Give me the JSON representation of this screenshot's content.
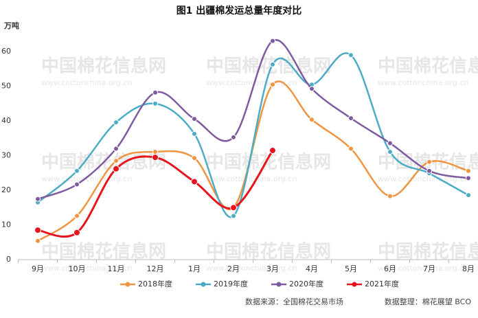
{
  "chart_data": {
    "type": "line",
    "title": "图1  出疆棉发运总量年度对比",
    "y_label": "万吨",
    "source": "数据来源：全国棉花交易市场",
    "credit": "数据整理：棉花展望  BCO",
    "watermark": "中国棉花信息网",
    "watermark_url": "www.cottonchina.org.cn",
    "categories": [
      "9月",
      "10月",
      "11月",
      "12月",
      "1月",
      "2月",
      "3月",
      "4月",
      "5月",
      "6月",
      "7月",
      "8月"
    ],
    "series": [
      {
        "name": "2018年度",
        "color": "#f0953f",
        "values": [
          5.4,
          12.6,
          28.5,
          31.1,
          29.3,
          15.0,
          50.5,
          40.4,
          32.0,
          18.3,
          28.2,
          25.6
        ]
      },
      {
        "name": "2019年度",
        "color": "#4bacc6",
        "values": [
          16.5,
          25.6,
          39.6,
          45.0,
          36.3,
          12.6,
          56.3,
          50.5,
          59.0,
          31.1,
          24.9,
          18.6
        ]
      },
      {
        "name": "2020年度",
        "color": "#7e5aa0",
        "values": [
          17.5,
          21.7,
          32.0,
          48.2,
          40.6,
          35.3,
          63.1,
          49.3,
          40.8,
          33.6,
          25.6,
          23.5
        ]
      },
      {
        "name": "2021年度",
        "color": "#e8141b",
        "values": [
          8.5,
          7.8,
          26.2,
          29.5,
          22.5,
          15.0,
          31.5,
          null,
          null,
          null,
          null,
          null
        ]
      }
    ],
    "ylim": [
      0,
      65
    ],
    "yticks": [
      0,
      10,
      20,
      30,
      40,
      50,
      60
    ],
    "grid": false,
    "legend": "bottom"
  }
}
